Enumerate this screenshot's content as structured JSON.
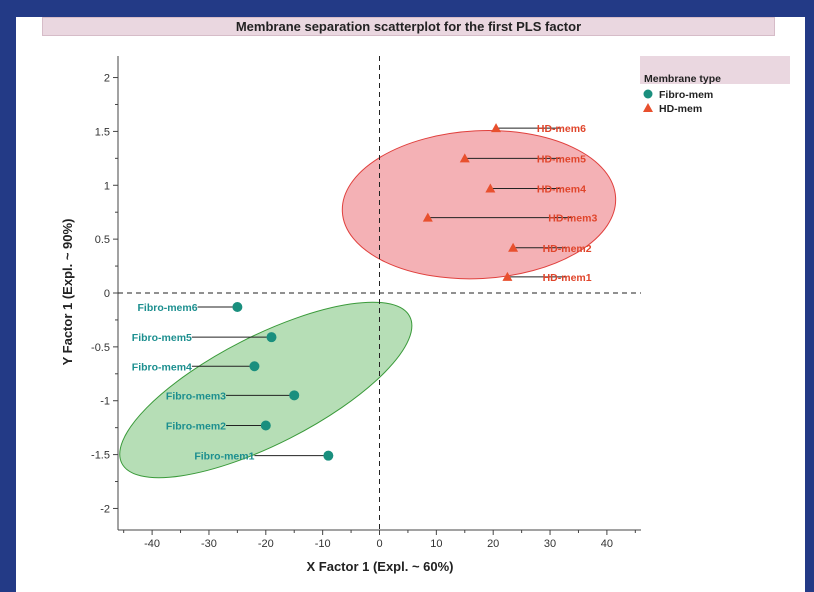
{
  "chart_data": {
    "type": "scatter",
    "title": "Membrane separation scatterplot for the first PLS factor",
    "xlabel": "X Factor 1 (Expl. ~ 60%)",
    "ylabel": "Y Factor 1 (Expl. ~ 90%)",
    "xlim": [
      -46,
      46
    ],
    "ylim": [
      -2.2,
      2.2
    ],
    "xticks": [
      -40,
      -30,
      -20,
      -10,
      0,
      10,
      20,
      30,
      40
    ],
    "yticks": [
      2,
      1.5,
      1,
      0.5,
      0,
      -0.5,
      -1,
      -1.5,
      -2
    ],
    "xtick_labels": [
      "-40",
      "-30",
      "-20",
      "-10",
      "0",
      "10",
      "20",
      "30",
      "40"
    ],
    "ytick_labels": [
      "2",
      "1.5",
      "1",
      "0.5",
      "0",
      "-0.5",
      "-1",
      "-1.5",
      "-2"
    ],
    "legend": {
      "title": "Membrane type",
      "placement": "top-right",
      "entries": [
        "Fibro-mem",
        "HD-mem"
      ]
    },
    "series": [
      {
        "name": "Fibro-mem",
        "color": "#1a8f7e",
        "marker": "circle",
        "ellipse_fill": "#a9d8a9",
        "ellipse_stroke": "#3a9a3a",
        "points": [
          {
            "label": "Fibro-mem1",
            "x": -9,
            "y": -1.51,
            "label_x": -22
          },
          {
            "label": "Fibro-mem2",
            "x": -20,
            "y": -1.23,
            "label_x": -27
          },
          {
            "label": "Fibro-mem3",
            "x": -15,
            "y": -0.95,
            "label_x": -27
          },
          {
            "label": "Fibro-mem4",
            "x": -22,
            "y": -0.68,
            "label_x": -33
          },
          {
            "label": "Fibro-mem5",
            "x": -19,
            "y": -0.41,
            "label_x": -33
          },
          {
            "label": "Fibro-mem6",
            "x": -25,
            "y": -0.13,
            "label_x": -32
          }
        ]
      },
      {
        "name": "HD-mem",
        "color": "#e8502e",
        "marker": "triangle",
        "ellipse_fill": "#f2a3a8",
        "ellipse_stroke": "#e0403d",
        "points": [
          {
            "label": "HD-mem1",
            "x": 22.5,
            "y": 0.15,
            "label_x": 33
          },
          {
            "label": "HD-mem2",
            "x": 23.5,
            "y": 0.42,
            "label_x": 33
          },
          {
            "label": "HD-mem3",
            "x": 8.5,
            "y": 0.7,
            "label_x": 34
          },
          {
            "label": "HD-mem4",
            "x": 19.5,
            "y": 0.97,
            "label_x": 32
          },
          {
            "label": "HD-mem5",
            "x": 15,
            "y": 1.25,
            "label_x": 32
          },
          {
            "label": "HD-mem6",
            "x": 20.5,
            "y": 1.53,
            "label_x": 32
          }
        ]
      }
    ],
    "ellipses": [
      {
        "series": "Fibro-mem",
        "cx": -20,
        "cy": -0.9,
        "rx_data": 9.5,
        "ry_data": 1.5,
        "tilt_deg": -27
      },
      {
        "series": "HD-mem",
        "cx": 17.5,
        "cy": 0.82,
        "rx_data": 13,
        "ry_data": 1.27,
        "tilt_deg": -3
      }
    ],
    "reference_lines": {
      "x": 0,
      "y": 0
    },
    "grid": false
  }
}
